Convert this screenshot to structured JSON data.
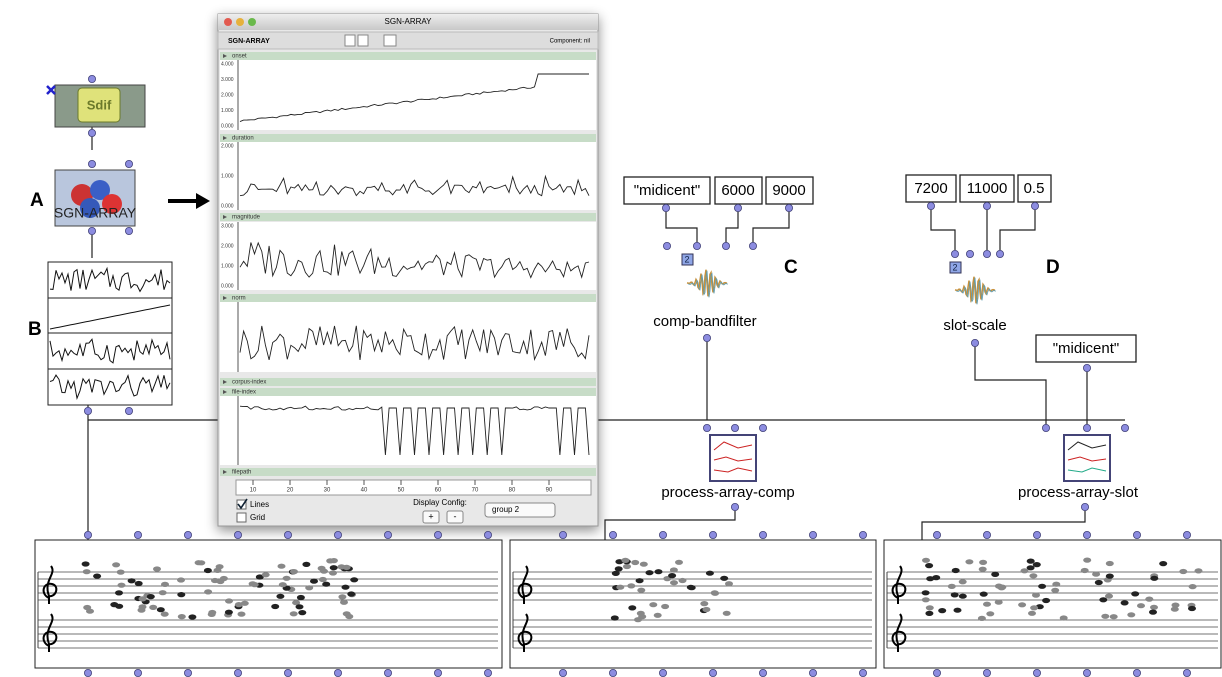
{
  "labels": {
    "a": "A",
    "b": "B",
    "c": "C",
    "d": "D"
  },
  "sdif": {
    "label": "Sdif"
  },
  "sgn_box": {
    "label": "SGN-ARRAY"
  },
  "window": {
    "title": "SGN-ARRAY",
    "toolbar_name": "SGN-ARRAY",
    "component": "Component: nil",
    "tracks": [
      {
        "name": "onset",
        "ticks": [
          "4.000",
          "3.000",
          "2.000",
          "1.000",
          "0.000"
        ]
      },
      {
        "name": "duration",
        "ticks": [
          "2.000",
          "1.000",
          "0.000"
        ]
      },
      {
        "name": "magnitude",
        "ticks": [
          "3.000",
          "2.000",
          "1.000",
          "0.000"
        ]
      },
      {
        "name": "norm",
        "ticks": []
      },
      {
        "name": "corpus-index",
        "ticks": []
      },
      {
        "name": "file-index",
        "ticks": []
      },
      {
        "name": "filepath",
        "ticks": []
      }
    ],
    "ruler": [
      "10",
      "20",
      "30",
      "40",
      "50",
      "60",
      "70",
      "80",
      "90"
    ],
    "lines": "Lines",
    "grid": "Grid",
    "display_config": "Display Config:",
    "plus": "+",
    "minus": "-",
    "group": "group 2"
  },
  "boxes": {
    "c": {
      "inputs": [
        "\"midicent\"",
        "6000",
        "9000"
      ],
      "badge": "2",
      "name": "comp-bandfilter"
    },
    "d": {
      "inputs": [
        "7200",
        "11000",
        "0.5"
      ],
      "badge": "2",
      "name": "slot-scale",
      "extra": "\"midicent\""
    },
    "process_comp": "process-array-comp",
    "process_slot": "process-array-slot"
  }
}
